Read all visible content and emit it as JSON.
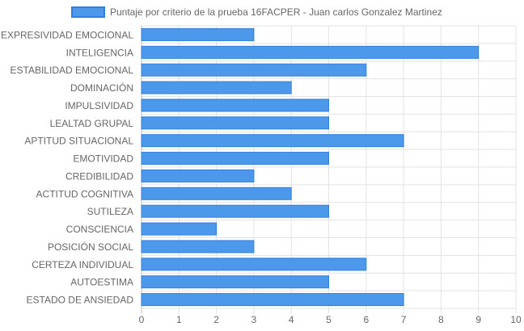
{
  "colors": {
    "bar_fill": "#4c99ec",
    "bar_stroke": "#2f7fe0",
    "grid": "#e3e3e3",
    "text": "#666666"
  },
  "chart_data": {
    "type": "bar",
    "orientation": "horizontal",
    "categories": [
      "EXPRESIVIDAD EMOCIONAL",
      "INTELIGENCIA",
      "ESTABILIDAD EMOCIONAL",
      "DOMINACIÓN",
      "IMPULSIVIDAD",
      "LEALTAD GRUPAL",
      "APTITUD SITUACIONAL",
      "EMOTIVIDAD",
      "CREDIBILIDAD",
      "ACTITUD COGNITIVA",
      "SUTILEZA",
      "CONSCIENCIA",
      "POSICIÓN SOCIAL",
      "CERTEZA INDIVIDUAL",
      "AUTOESTIMA",
      "ESTADO DE ANSIEDAD"
    ],
    "series": [
      {
        "name": "Puntaje por criterio de la prueba 16FACPER - Juan carlos Gonzalez Martinez",
        "values": [
          3,
          9,
          6,
          4,
          5,
          5,
          7,
          5,
          3,
          4,
          5,
          2,
          3,
          6,
          5,
          7
        ]
      }
    ],
    "xlim": [
      0,
      10
    ],
    "xticks": [
      0,
      1,
      2,
      3,
      4,
      5,
      6,
      7,
      8,
      9,
      10
    ],
    "grid": true,
    "legend_position": "top"
  }
}
